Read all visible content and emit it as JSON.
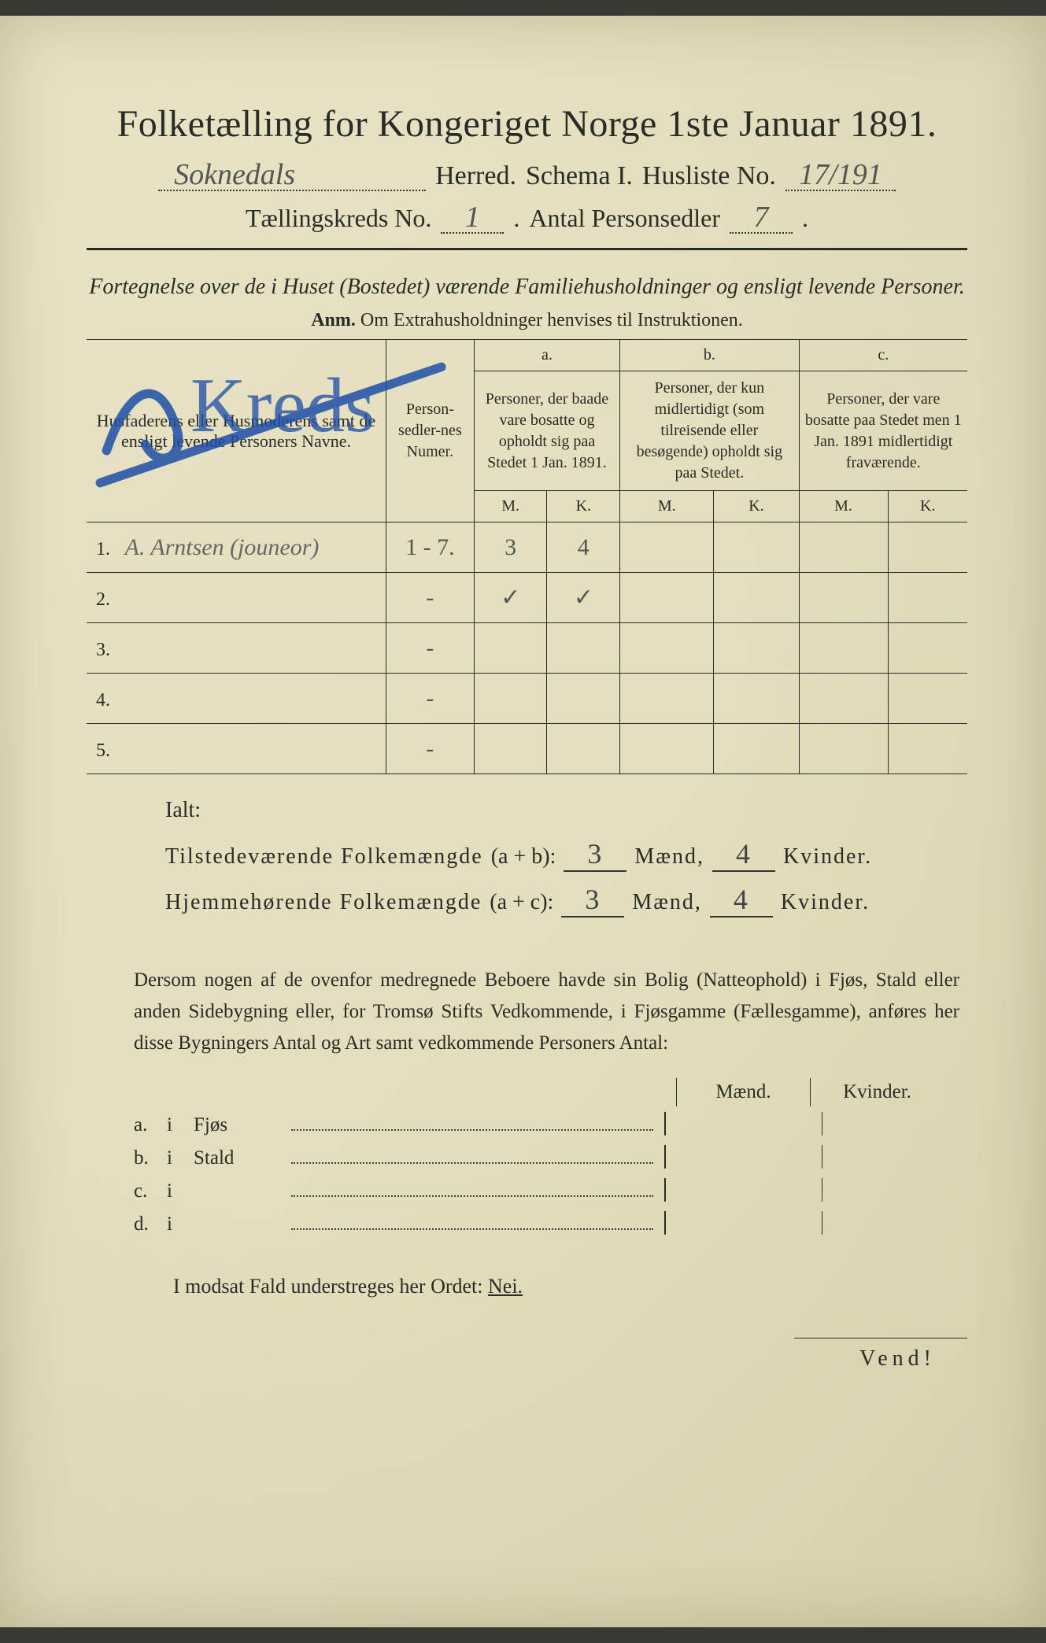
{
  "title": "Folketælling for Kongeriget Norge 1ste Januar 1891.",
  "line2": {
    "herred_value": "Soknedals",
    "herred_label": "Herred.",
    "schema_label": "Schema I.",
    "husliste_label": "Husliste No.",
    "husliste_value": "17/191"
  },
  "line3": {
    "kreds_label": "Tællingskreds No.",
    "kreds_value": "1",
    "antal_label": "Antal Personsedler",
    "antal_value": "7"
  },
  "subtitle": "Fortegnelse over de i Huset (Bostedet) værende Familiehusholdninger og ensligt levende Personer.",
  "anm_label": "Anm.",
  "anm_text": "Om Extrahusholdninger henvises til Instruktionen.",
  "table": {
    "col_name": "Husfaderens eller Husmoderens samt de ensligt levende Personers Navne.",
    "col_num": "Person-sedler-nes Numer.",
    "col_a_letter": "a.",
    "col_a": "Personer, der baade vare bosatte og opholdt sig paa Stedet 1 Jan. 1891.",
    "col_b_letter": "b.",
    "col_b": "Personer, der kun midlertidigt (som tilreisende eller besøgende) opholdt sig paa Stedet.",
    "col_c_letter": "c.",
    "col_c": "Personer, der vare bosatte paa Stedet men 1 Jan. 1891 midlertidigt fraværende.",
    "mk_m": "M.",
    "mk_k": "K.",
    "rows": [
      {
        "n": "1.",
        "name": "A. Arntsen (jouneor)",
        "num": "1 - 7.",
        "a_m": "3",
        "a_k": "4",
        "b_m": "",
        "b_k": "",
        "c_m": "",
        "c_k": ""
      },
      {
        "n": "2.",
        "name": "",
        "num": "-",
        "a_m": "✓",
        "a_k": "✓",
        "b_m": "",
        "b_k": "",
        "c_m": "",
        "c_k": ""
      },
      {
        "n": "3.",
        "name": "",
        "num": "-",
        "a_m": "",
        "a_k": "",
        "b_m": "",
        "b_k": "",
        "c_m": "",
        "c_k": ""
      },
      {
        "n": "4.",
        "name": "",
        "num": "-",
        "a_m": "",
        "a_k": "",
        "b_m": "",
        "b_k": "",
        "c_m": "",
        "c_k": ""
      },
      {
        "n": "5.",
        "name": "",
        "num": "-",
        "a_m": "",
        "a_k": "",
        "b_m": "",
        "b_k": "",
        "c_m": "",
        "c_k": ""
      }
    ]
  },
  "ialt": {
    "title": "Ialt:",
    "line1_label": "Tilstedeværende Folkemængde",
    "line1_paren": "(a + b):",
    "line2_label": "Hjemmehørende Folkemængde",
    "line2_paren": "(a + c):",
    "maend": "Mænd,",
    "kvinder": "Kvinder.",
    "v1_m": "3",
    "v1_k": "4",
    "v2_m": "3",
    "v2_k": "4"
  },
  "para": "Dersom nogen af de ovenfor medregnede Beboere havde sin Bolig (Natteophold) i Fjøs, Stald eller anden Sidebygning eller, for Tromsø Stifts Vedkommende, i Fjøsgamme (Fællesgamme), anføres her disse Bygningers Antal og Art samt vedkommende Personers Antal:",
  "side": {
    "head_m": "Mænd.",
    "head_k": "Kvinder.",
    "rows": [
      {
        "l": "a.",
        "i": "i",
        "t": "Fjøs"
      },
      {
        "l": "b.",
        "i": "i",
        "t": "Stald"
      },
      {
        "l": "c.",
        "i": "i",
        "t": ""
      },
      {
        "l": "d.",
        "i": "i",
        "t": ""
      }
    ]
  },
  "modsat": "I modsat Fald understreges her Ordet:",
  "nei": "Nei.",
  "vend": "Vend!",
  "colors": {
    "paper": "#e4dfbf",
    "ink": "#2a2a28",
    "pencil": "#666",
    "blue_crayon": "#1e4fa8"
  }
}
